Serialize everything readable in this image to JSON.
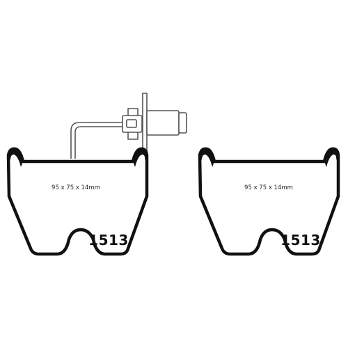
{
  "pads": [
    {
      "dimensions": "95 x 75 x 14mm",
      "part_number": "1513",
      "has_wear_sensor": true
    },
    {
      "dimensions": "95 x 75 x 14mm",
      "part_number": "1513",
      "has_wear_sensor": false
    }
  ],
  "colors": {
    "outline": "#111111",
    "sensor": "#555555",
    "background": "#ffffff"
  }
}
